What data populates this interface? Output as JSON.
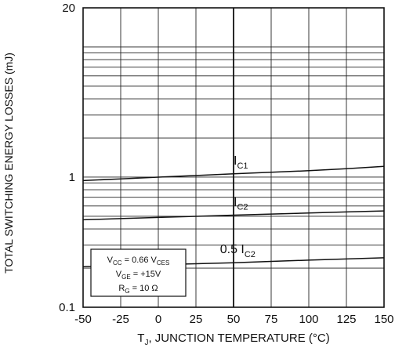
{
  "chart_data": {
    "type": "line",
    "ylabel": "TOTAL SWITCHING ENERGY LOSSES (mJ)",
    "xlabel_main": "T",
    "xlabel_sub": "J",
    "xlabel_rest": ", JUNCTION TEMPERATURE (°C)",
    "xlim": [
      -50,
      150
    ],
    "ylim": [
      0.1,
      20
    ],
    "yscale": "log",
    "x_ticks": [
      -50,
      -25,
      0,
      25,
      50,
      75,
      100,
      125,
      150
    ],
    "x_tick_labels": [
      "-50",
      "-25",
      "0",
      "25",
      "50",
      "75",
      "100",
      "125",
      "150"
    ],
    "y_tick_labels": [
      {
        "value": 20,
        "label": "20"
      },
      {
        "value": 1,
        "label": "1"
      },
      {
        "value": 0.1,
        "label": "0.1"
      }
    ],
    "grid": true,
    "series": [
      {
        "label_main": "I",
        "label_sub": "C1",
        "label_prefix": "",
        "x": [
          -50,
          -25,
          0,
          25,
          50,
          75,
          100,
          125,
          150
        ],
        "y": [
          0.94,
          0.97,
          1.0,
          1.03,
          1.06,
          1.09,
          1.12,
          1.16,
          1.21
        ]
      },
      {
        "label_main": "I",
        "label_sub": "C2",
        "label_prefix": "",
        "x": [
          -50,
          -25,
          0,
          25,
          50,
          75,
          100,
          125,
          150
        ],
        "y": [
          0.47,
          0.48,
          0.49,
          0.5,
          0.51,
          0.52,
          0.53,
          0.54,
          0.55
        ]
      },
      {
        "label_main": "I",
        "label_sub": "C2",
        "label_prefix": "0.5 ",
        "x": [
          -50,
          -25,
          0,
          25,
          50,
          75,
          100,
          125,
          150
        ],
        "y": [
          0.205,
          0.208,
          0.212,
          0.216,
          0.22,
          0.225,
          0.23,
          0.235,
          0.24
        ]
      }
    ],
    "conditions": [
      {
        "main": "V",
        "sub": "CC",
        "mid": " = 0.66 V",
        "sub2": "CES",
        "tail": ""
      },
      {
        "main": "V",
        "sub": "GE",
        "mid": " = +15V",
        "sub2": "",
        "tail": ""
      },
      {
        "main": "R",
        "sub": "G",
        "mid": " = 10 Ω",
        "sub2": "",
        "tail": ""
      }
    ]
  }
}
